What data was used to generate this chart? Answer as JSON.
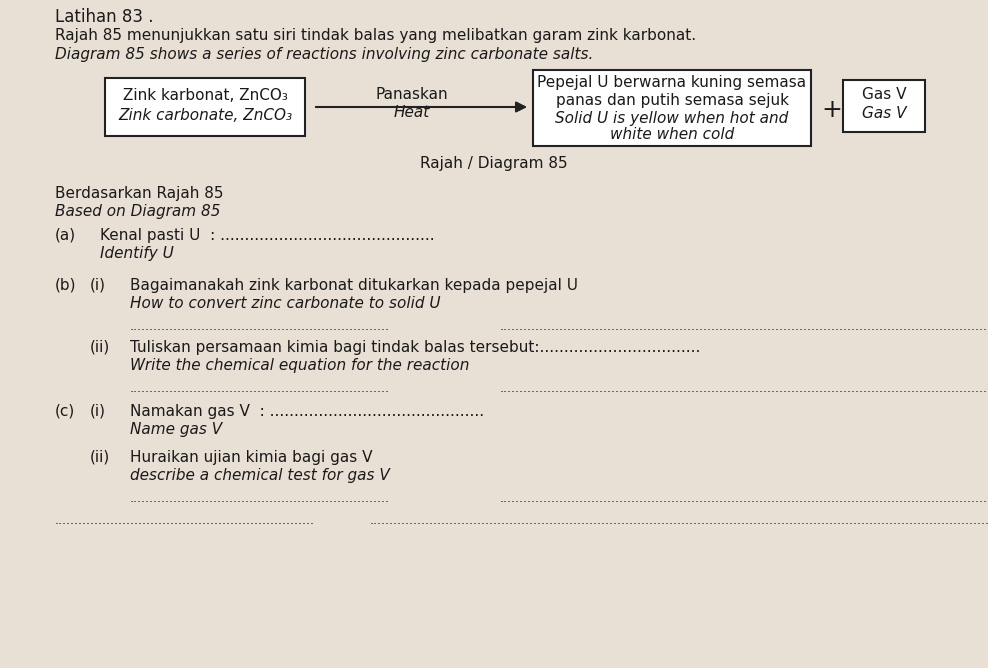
{
  "bg_color": "#e8e0d5",
  "text_color": "#1a1a1a",
  "title_line1": "Latihan 83 .",
  "intro_malay": "Rajah 85 menunjukkan satu siri tindak balas yang melibatkan garam zink karbonat.",
  "intro_english": "Diagram 85 shows a series of reactions involving zinc carbonate salts.",
  "box1_line1": "Zink karbonat, ZnCO₃",
  "box1_line2": "Zink carbonate, ZnCO₃",
  "arrow_label1": "Panaskan",
  "arrow_label2": "Heat",
  "box2_line1": "Pepejal U berwarna kuning semasa",
  "box2_line2": "panas dan putih semasa sejuk",
  "box2_line3": "Solid U is yellow when hot and",
  "box2_line4": "white when cold",
  "plus_sign": "+",
  "box3_line1": "Gas V",
  "box3_line2": "Gas V",
  "diagram_label": "Rajah / Diagram 85",
  "based_malay": "Berdasarkan Rajah 85",
  "based_english": "Based on Diagram 85",
  "qa_label": "(a)",
  "qa_malay": "Kenal pasti U  : ............................................",
  "qa_english": "Identify U",
  "qb_label": "(b)",
  "qb_i_label": "(i)",
  "qb_i_malay": "Bagaimanakah zink karbonat ditukarkan kepada pepejal U",
  "qb_i_english": "How to convert zinc carbonate to solid U",
  "qb_ii_label": "(ii)",
  "qb_ii_malay": "Tuliskan persamaan kimia bagi tindak balas tersebut:.................................",
  "qb_ii_english": "Write the chemical equation for the reaction",
  "qc_label": "(c)",
  "qc_i_label": "(i)",
  "qc_i_malay": "Namakan gas V  : ............................................",
  "qc_i_english": "Name gas V",
  "qc_ii_label": "(ii)",
  "qc_ii_malay": "Huraikan ujian kimia bagi gas V",
  "qc_ii_english": "describe a chemical test for gas V",
  "dots_short": ".................................................................",
  "dots_long": ".............................................................................................................................................................................",
  "font_size_title": 12,
  "font_size_intro": 11,
  "font_size_box": 10,
  "font_size_question": 11,
  "font_size_diagram_label": 11
}
